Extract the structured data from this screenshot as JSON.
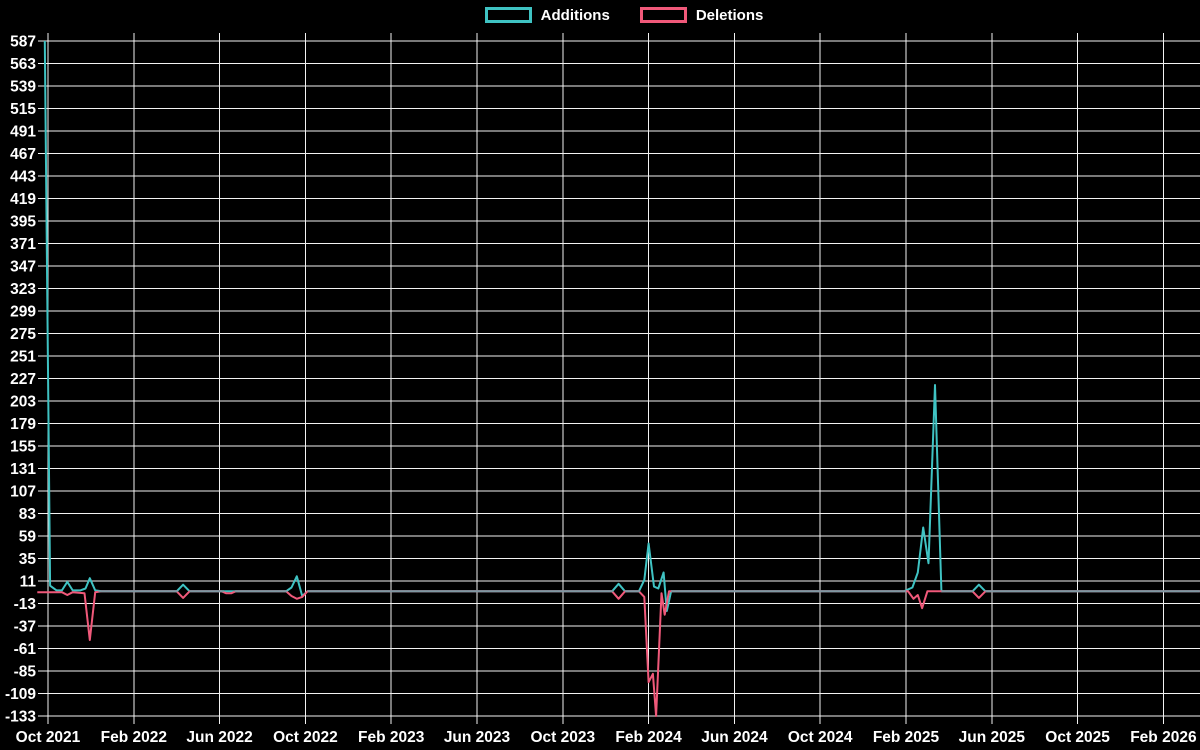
{
  "chart_data": {
    "type": "line",
    "title": "",
    "legend_position": "top-center",
    "grid": true,
    "background": "#000000",
    "text_color": "#ffffff",
    "grid_color": "#f2f2f2",
    "overlap_color": "#7e98a2",
    "x_axis": {
      "labels": [
        "Oct 2021",
        "Feb 2022",
        "Jun 2022",
        "Oct 2022",
        "Feb 2023",
        "Jun 2023",
        "Oct 2023",
        "Feb 2024",
        "Jun 2024",
        "Oct 2024",
        "Feb 2025",
        "Jun 2025",
        "Oct 2025",
        "Feb 2026"
      ],
      "months_per_label": 4
    },
    "y_axis": {
      "min": -133,
      "max": 587,
      "step": 24,
      "ticks": [
        -133,
        -109,
        -85,
        -61,
        -37,
        -13,
        11,
        35,
        59,
        83,
        107,
        131,
        155,
        179,
        203,
        227,
        251,
        275,
        299,
        323,
        347,
        371,
        395,
        419,
        443,
        467,
        491,
        515,
        539,
        563,
        587
      ]
    },
    "x_unit": "months_since_Oct_2021",
    "series": [
      {
        "name": "Additions",
        "color": "#3fc3c3",
        "points": [
          [
            -0.15,
            587
          ],
          [
            0.1,
            6
          ],
          [
            0.4,
            1
          ],
          [
            0.65,
            1
          ],
          [
            0.9,
            10
          ],
          [
            1.15,
            1
          ],
          [
            1.5,
            1
          ],
          [
            1.75,
            3
          ],
          [
            1.95,
            14
          ],
          [
            2.2,
            1
          ],
          [
            2.5,
            0
          ],
          [
            6.0,
            0
          ],
          [
            6.3,
            7
          ],
          [
            6.6,
            0
          ],
          [
            11.1,
            0
          ],
          [
            11.35,
            4
          ],
          [
            11.6,
            16
          ],
          [
            11.85,
            -5
          ],
          [
            12.1,
            0
          ],
          [
            26.3,
            0
          ],
          [
            26.6,
            8
          ],
          [
            26.9,
            0
          ],
          [
            27.55,
            0
          ],
          [
            27.8,
            12
          ],
          [
            28.0,
            51
          ],
          [
            28.25,
            5
          ],
          [
            28.45,
            3
          ],
          [
            28.7,
            20
          ],
          [
            28.85,
            -21
          ],
          [
            29.05,
            0
          ],
          [
            39.9,
            0
          ],
          [
            40.3,
            4
          ],
          [
            40.55,
            20
          ],
          [
            40.8,
            68
          ],
          [
            41.05,
            30
          ],
          [
            41.35,
            220
          ],
          [
            41.65,
            0
          ],
          [
            43.1,
            0
          ],
          [
            43.4,
            7
          ],
          [
            43.7,
            0
          ],
          [
            53.7,
            0
          ]
        ]
      },
      {
        "name": "Deletions",
        "color": "#f0597a",
        "points": [
          [
            -0.5,
            -1
          ],
          [
            0.65,
            -1
          ],
          [
            0.9,
            -4
          ],
          [
            1.15,
            -1
          ],
          [
            1.7,
            -2
          ],
          [
            1.95,
            -52
          ],
          [
            2.2,
            -1
          ],
          [
            2.5,
            0
          ],
          [
            6.0,
            0
          ],
          [
            6.3,
            -7
          ],
          [
            6.6,
            0
          ],
          [
            8.1,
            0
          ],
          [
            8.3,
            -2
          ],
          [
            8.55,
            -2
          ],
          [
            8.75,
            0
          ],
          [
            11.1,
            0
          ],
          [
            11.35,
            -5
          ],
          [
            11.6,
            -8
          ],
          [
            11.85,
            -6
          ],
          [
            12.1,
            0
          ],
          [
            26.3,
            0
          ],
          [
            26.6,
            -8
          ],
          [
            26.9,
            0
          ],
          [
            27.55,
            0
          ],
          [
            27.8,
            -6
          ],
          [
            28.0,
            -97
          ],
          [
            28.2,
            -88
          ],
          [
            28.35,
            -133
          ],
          [
            28.6,
            -2
          ],
          [
            28.75,
            -25
          ],
          [
            28.95,
            0
          ],
          [
            40.1,
            0
          ],
          [
            40.35,
            -8
          ],
          [
            40.55,
            -4
          ],
          [
            40.75,
            -18
          ],
          [
            41.0,
            0
          ],
          [
            43.1,
            0
          ],
          [
            43.4,
            -7
          ],
          [
            43.7,
            0
          ],
          [
            53.7,
            0
          ]
        ]
      }
    ]
  }
}
